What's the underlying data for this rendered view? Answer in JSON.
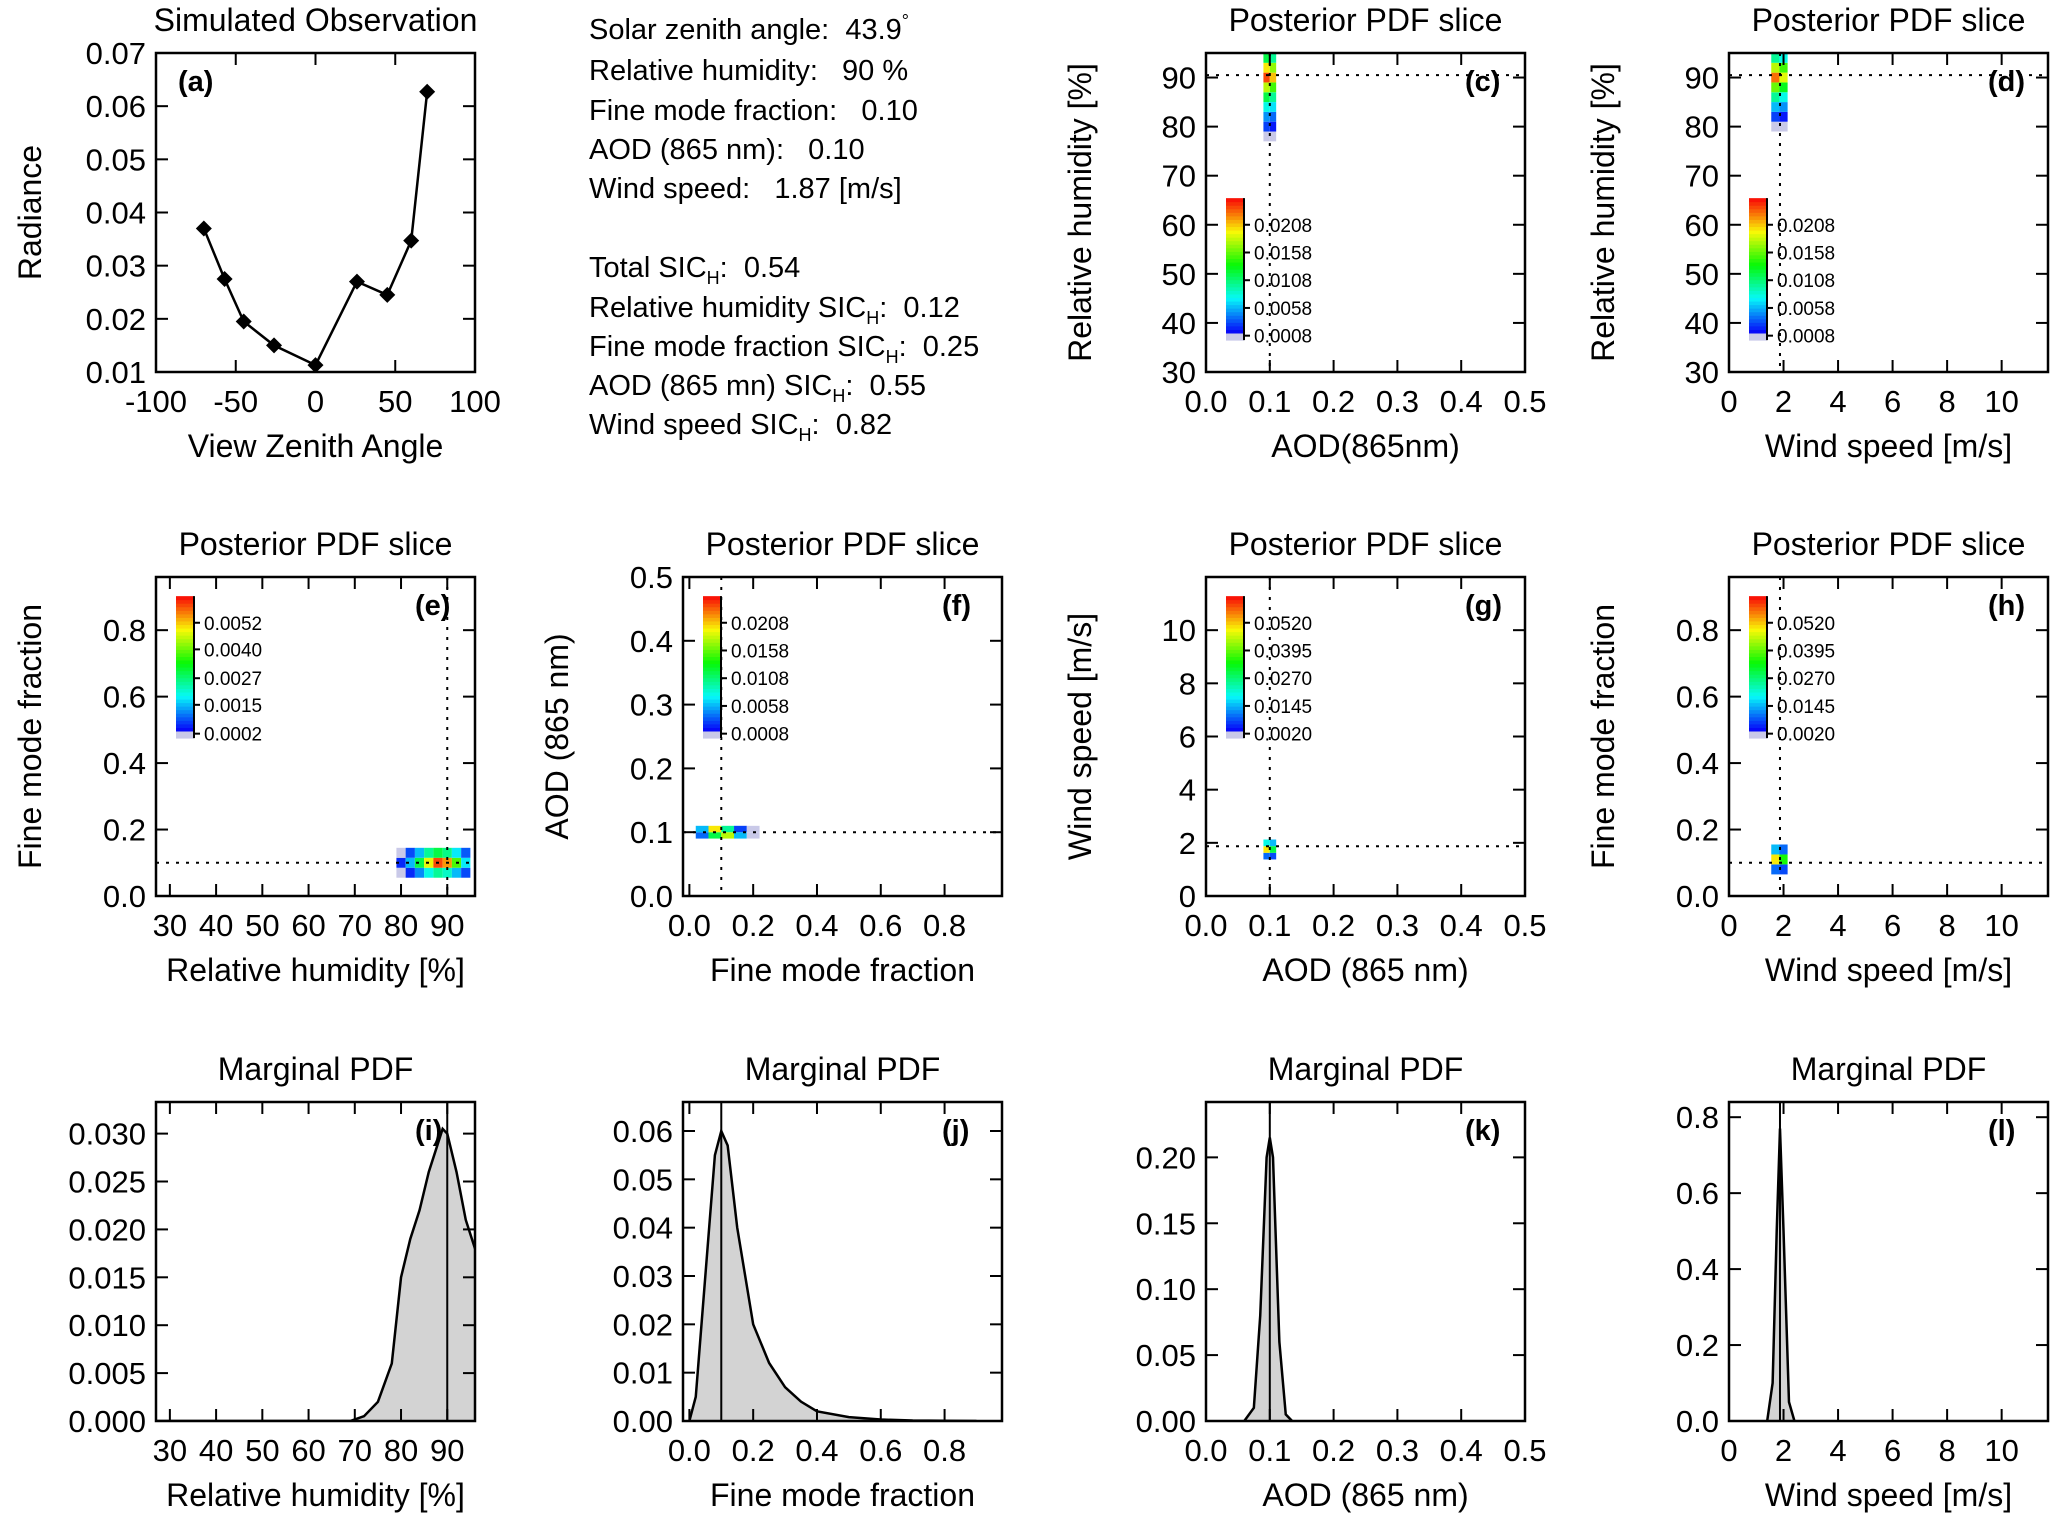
{
  "info": {
    "lines": [
      {
        "text": "Solar zenith angle:  43.9",
        "sup": "°"
      },
      {
        "text": "Relative humidity:   90 %"
      },
      {
        "text": "Fine mode fraction:   0.10"
      },
      {
        "text": "AOD (865 nm):   0.10"
      },
      {
        "text": "Wind speed:   1.87 [m/s]"
      },
      {
        "text": "Total SIC",
        "sub": "H",
        "after": ":  0.54"
      },
      {
        "text": "Relative humidity SIC",
        "sub": "H",
        "after": ":  0.12"
      },
      {
        "text": "Fine mode fraction SIC",
        "sub": "H",
        "after": ":  0.25"
      },
      {
        "text": "AOD (865 mn) SIC",
        "sub": "H",
        "after": ":  0.55"
      },
      {
        "text": "Wind speed SIC",
        "sub": "H",
        "after": ":  0.82"
      }
    ]
  },
  "chart_data": [
    {
      "type": "line",
      "title": "Simulated Observation",
      "label": "(a)",
      "xlabel": "View Zenith Angle",
      "ylabel": "Radiance",
      "x": [
        -70,
        -57,
        -45,
        -26,
        0,
        26,
        45,
        60,
        70
      ],
      "values": [
        0.037,
        0.0275,
        0.0195,
        0.015,
        0.0113,
        0.027,
        0.0245,
        0.0347,
        0.0627
      ],
      "color": "#000000",
      "xlim": [
        -100,
        100
      ],
      "ylim": [
        0.01,
        0.07
      ],
      "xticks": [
        -100,
        -50,
        0,
        50,
        100
      ],
      "yticks": [
        0.01,
        0.02,
        0.03,
        0.04,
        0.05,
        0.06,
        0.07
      ]
    },
    {
      "type": "heatmap",
      "title": "Posterior PDF slice",
      "label": "(c)",
      "xlabel": "AOD(865nm)",
      "ylabel": "Relative humidity [%]",
      "cells": {
        "x": [
          0.095,
          0.095,
          0.095,
          0.095,
          0.095,
          0.095,
          0.095,
          0.095,
          0.095,
          0.105,
          0.105,
          0.105,
          0.105,
          0.105,
          0.105,
          0.105,
          0.105,
          0.105
        ],
        "y": [
          78,
          80,
          82,
          84,
          86,
          88,
          90,
          92,
          94,
          78,
          80,
          82,
          84,
          86,
          88,
          90,
          92,
          94
        ],
        "values": [
          0.001,
          0.003,
          0.005,
          0.008,
          0.012,
          0.018,
          0.024,
          0.02,
          0.012,
          0.001,
          0.002,
          0.004,
          0.007,
          0.01,
          0.015,
          0.021,
          0.017,
          0.01
        ]
      },
      "ref_x": 0.1,
      "ref_y": 90.5,
      "zlim": [
        0,
        0.0256
      ],
      "cbar_ticks": [
        0.0208,
        0.0158,
        0.0108,
        0.0058,
        0.0008
      ],
      "xlim": [
        0,
        0.5
      ],
      "ylim": [
        30,
        95
      ],
      "xticks": [
        {
          "value": 0,
          "label": "0.0"
        },
        0.1,
        0.2,
        0.3,
        0.4,
        0.5
      ],
      "yticks": [
        30,
        40,
        50,
        60,
        70,
        80,
        90
      ]
    },
    {
      "type": "heatmap",
      "title": "Posterior PDF slice",
      "label": "(d)",
      "xlabel": "Wind speed [m/s]",
      "ylabel": "Relative humidity [%]",
      "cells": {
        "x": [
          1.7,
          1.7,
          1.7,
          1.7,
          1.7,
          1.7,
          1.7,
          1.7,
          2.0,
          2.0,
          2.0,
          2.0,
          2.0,
          2.0,
          2.0,
          2.0
        ],
        "y": [
          80,
          82,
          84,
          86,
          88,
          90,
          92,
          94,
          80,
          82,
          84,
          86,
          88,
          90,
          92,
          94
        ],
        "values": [
          0.001,
          0.003,
          0.006,
          0.01,
          0.016,
          0.023,
          0.018,
          0.01,
          0.001,
          0.002,
          0.005,
          0.008,
          0.013,
          0.019,
          0.015,
          0.008
        ]
      },
      "ref_x": 1.87,
      "ref_y": 90.5,
      "zlim": [
        0,
        0.0256
      ],
      "cbar_ticks": [
        0.0208,
        0.0158,
        0.0108,
        0.0058,
        0.0008
      ],
      "xlim": [
        0,
        11.7
      ],
      "ylim": [
        30,
        95
      ],
      "xticks": [
        0,
        2,
        4,
        6,
        8,
        10
      ],
      "yticks": [
        30,
        40,
        50,
        60,
        70,
        80,
        90
      ]
    },
    {
      "type": "heatmap",
      "title": "Posterior PDF slice",
      "label": "(e)",
      "xlabel": "Relative humidity [%]",
      "ylabel": "Fine mode fraction",
      "cells": {
        "x": [
          80,
          82,
          84,
          86,
          88,
          90,
          92,
          94,
          80,
          82,
          84,
          86,
          88,
          90,
          92,
          94,
          80,
          82,
          84,
          86,
          88,
          90,
          92,
          94
        ],
        "y": [
          0.07,
          0.07,
          0.07,
          0.07,
          0.07,
          0.07,
          0.07,
          0.07,
          0.1,
          0.1,
          0.1,
          0.1,
          0.1,
          0.1,
          0.1,
          0.1,
          0.13,
          0.13,
          0.13,
          0.13,
          0.13,
          0.13,
          0.13,
          0.13
        ],
        "values": [
          0.0003,
          0.0006,
          0.0012,
          0.002,
          0.0025,
          0.0022,
          0.0015,
          0.0008,
          0.0006,
          0.0015,
          0.003,
          0.0048,
          0.006,
          0.0055,
          0.0038,
          0.0018,
          0.0003,
          0.0008,
          0.0015,
          0.0025,
          0.003,
          0.0026,
          0.0018,
          0.0009
        ]
      },
      "ref_x": 90,
      "ref_y": 0.1,
      "zlim": [
        0,
        0.0064
      ],
      "cbar_ticks": [
        0.0052,
        {
          "value": 0.004,
          "label": "0.0040"
        },
        0.0027,
        0.0015,
        0.0002
      ],
      "xlim": [
        27,
        96
      ],
      "ylim": [
        0,
        0.96
      ],
      "xticks": [
        30,
        40,
        50,
        60,
        70,
        80,
        90
      ],
      "yticks": [
        {
          "value": 0,
          "label": "0.0"
        },
        0.2,
        0.4,
        0.6,
        0.8
      ]
    },
    {
      "type": "heatmap",
      "title": "Posterior PDF slice",
      "label": "(f)",
      "xlabel": "Fine mode fraction",
      "ylabel": "AOD (865 nm)",
      "cells": {
        "x": [
          0.04,
          0.08,
          0.12,
          0.16,
          0.2,
          0.04,
          0.08,
          0.12,
          0.16,
          0.2
        ],
        "y": [
          0.095,
          0.095,
          0.095,
          0.095,
          0.095,
          0.105,
          0.105,
          0.105,
          0.105,
          0.105
        ],
        "values": [
          0.004,
          0.012,
          0.018,
          0.006,
          0.001,
          0.006,
          0.02,
          0.01,
          0.003,
          0.0008
        ]
      },
      "ref_x": 0.1,
      "ref_y": 0.1,
      "zlim": [
        0,
        0.0256
      ],
      "cbar_ticks": [
        0.0208,
        0.0158,
        0.0108,
        0.0058,
        0.0008
      ],
      "xlim": [
        -0.02,
        0.98
      ],
      "ylim": [
        0,
        0.5
      ],
      "xticks": [
        {
          "value": 0,
          "label": "0.0"
        },
        0.2,
        0.4,
        0.6,
        0.8
      ],
      "yticks": [
        {
          "value": 0,
          "label": "0.0"
        },
        0.1,
        0.2,
        0.3,
        0.4,
        0.5
      ]
    },
    {
      "type": "heatmap",
      "title": "Posterior PDF slice",
      "label": "(g)",
      "xlabel": "AOD (865 nm)",
      "ylabel": "Wind speed [m/s]",
      "cells": {
        "x": [
          0.095,
          0.095,
          0.095,
          0.105,
          0.105,
          0.105
        ],
        "y": [
          1.5,
          1.75,
          2.0,
          1.5,
          1.75,
          2.0
        ],
        "values": [
          0.01,
          0.05,
          0.02,
          0.008,
          0.03,
          0.015
        ]
      },
      "ref_x": 0.1,
      "ref_y": 1.87,
      "zlim": [
        0,
        0.064
      ],
      "cbar_ticks": [
        {
          "value": 0.052,
          "label": "0.0520"
        },
        0.0395,
        {
          "value": 0.027,
          "label": "0.0270"
        },
        0.0145,
        {
          "value": 0.002,
          "label": "0.0020"
        }
      ],
      "xlim": [
        0,
        0.5
      ],
      "ylim": [
        0,
        12
      ],
      "xticks": [
        {
          "value": 0,
          "label": "0.0"
        },
        0.1,
        0.2,
        0.3,
        0.4,
        0.5
      ],
      "yticks": [
        0,
        2,
        4,
        6,
        8,
        10
      ]
    },
    {
      "type": "heatmap",
      "title": "Posterior PDF slice",
      "label": "(h)",
      "xlabel": "Wind speed [m/s]",
      "ylabel": "Fine mode fraction",
      "cells": {
        "x": [
          1.7,
          1.7,
          1.7,
          2.0,
          2.0,
          2.0
        ],
        "y": [
          0.08,
          0.11,
          0.14,
          0.08,
          0.11,
          0.14
        ],
        "values": [
          0.01,
          0.05,
          0.015,
          0.008,
          0.035,
          0.01
        ]
      },
      "ref_x": 1.87,
      "ref_y": 0.1,
      "zlim": [
        0,
        0.064
      ],
      "cbar_ticks": [
        {
          "value": 0.052,
          "label": "0.0520"
        },
        0.0395,
        {
          "value": 0.027,
          "label": "0.0270"
        },
        0.0145,
        {
          "value": 0.002,
          "label": "0.0020"
        }
      ],
      "xlim": [
        0,
        11.7
      ],
      "ylim": [
        0,
        0.96
      ],
      "xticks": [
        0,
        2,
        4,
        6,
        8,
        10
      ],
      "yticks": [
        {
          "value": 0,
          "label": "0.0"
        },
        0.2,
        0.4,
        0.6,
        0.8
      ]
    },
    {
      "type": "area",
      "title": "Marginal PDF",
      "label": "(i)",
      "xlabel": "Relative humidity [%]",
      "color": "#d3d3d3",
      "x": [
        27,
        69,
        72,
        75,
        78,
        80,
        82,
        84,
        86,
        88,
        89,
        90,
        92,
        94,
        96
      ],
      "values": [
        0,
        0,
        0.0005,
        0.002,
        0.006,
        0.015,
        0.019,
        0.022,
        0.026,
        0.029,
        0.0305,
        0.03,
        0.026,
        0.021,
        0.018
      ],
      "ref_x": 90,
      "xlim": [
        27,
        96
      ],
      "ylim": [
        0,
        0.0333
      ],
      "xticks": [
        30,
        40,
        50,
        60,
        70,
        80,
        90
      ],
      "yticks": [
        {
          "value": 0,
          "label": "0.000"
        },
        0.005,
        {
          "value": 0.01,
          "label": "0.010"
        },
        0.015,
        {
          "value": 0.02,
          "label": "0.020"
        },
        0.025,
        {
          "value": 0.03,
          "label": "0.030"
        }
      ]
    },
    {
      "type": "area",
      "title": "Marginal PDF",
      "label": "(j)",
      "xlabel": "Fine mode fraction",
      "color": "#d3d3d3",
      "x": [
        0,
        0.02,
        0.05,
        0.08,
        0.1,
        0.12,
        0.15,
        0.2,
        0.25,
        0.3,
        0.35,
        0.4,
        0.5,
        0.6,
        0.7,
        0.9
      ],
      "values": [
        0,
        0.005,
        0.03,
        0.055,
        0.06,
        0.057,
        0.04,
        0.02,
        0.012,
        0.007,
        0.004,
        0.002,
        0.0008,
        0.0003,
        0.0001,
        0
      ],
      "ref_x": 0.1,
      "xlim": [
        -0.02,
        0.98
      ],
      "ylim": [
        0,
        0.066
      ],
      "xticks": [
        {
          "value": 0,
          "label": "0.0"
        },
        0.2,
        0.4,
        0.6,
        0.8
      ],
      "yticks": [
        {
          "value": 0,
          "label": "0.00"
        },
        0.01,
        0.02,
        0.03,
        0.04,
        0.05,
        0.06
      ]
    },
    {
      "type": "area",
      "title": "Marginal PDF",
      "label": "(k)",
      "xlabel": "AOD (865 nm)",
      "color": "#d3d3d3",
      "x": [
        0.06,
        0.075,
        0.085,
        0.095,
        0.1,
        0.105,
        0.115,
        0.125,
        0.135
      ],
      "values": [
        0,
        0.01,
        0.08,
        0.2,
        0.215,
        0.2,
        0.06,
        0.005,
        0
      ],
      "ref_x": 0.1,
      "xlim": [
        0,
        0.5
      ],
      "ylim": [
        0,
        0.242
      ],
      "xticks": [
        {
          "value": 0,
          "label": "0.0"
        },
        0.1,
        0.2,
        0.3,
        0.4,
        0.5
      ],
      "yticks": [
        {
          "value": 0,
          "label": "0.00"
        },
        0.05,
        {
          "value": 0.1,
          "label": "0.10"
        },
        0.15,
        {
          "value": 0.2,
          "label": "0.20"
        }
      ]
    },
    {
      "type": "area",
      "title": "Marginal PDF",
      "label": "(l)",
      "xlabel": "Wind speed [m/s]",
      "color": "#d3d3d3",
      "x": [
        1.4,
        1.6,
        1.75,
        1.87,
        2.0,
        2.2,
        2.4
      ],
      "values": [
        0,
        0.1,
        0.5,
        0.77,
        0.5,
        0.05,
        0
      ],
      "ref_x": 1.87,
      "xlim": [
        0,
        11.7
      ],
      "ylim": [
        0,
        0.84
      ],
      "xticks": [
        0,
        2,
        4,
        6,
        8,
        10
      ],
      "yticks": [
        {
          "value": 0,
          "label": "0.0"
        },
        0.2,
        0.4,
        0.6,
        0.8
      ]
    }
  ]
}
